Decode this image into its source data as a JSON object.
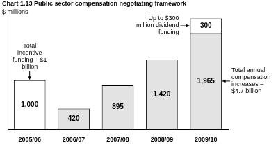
{
  "chart_data": {
    "type": "bar",
    "title": "Chart 1.13 Public sector compensation negotiating framework",
    "subtitle": "$ millions",
    "categories": [
      "2005/06",
      "2006/07",
      "2007/08",
      "2008/09",
      "2009/10"
    ],
    "series": [
      {
        "colors": [
          "#ffffff",
          "#e3e3e3",
          "#e3e3e3",
          "#e3e3e3",
          "#e3e3e3"
        ],
        "values": [
          1000,
          420,
          895,
          1420,
          1965
        ],
        "value_labels": [
          "1,000",
          "420",
          "895",
          "1,420",
          "1,965"
        ]
      },
      {
        "color": "#ffffff",
        "values": [
          null,
          null,
          null,
          null,
          300
        ]
      }
    ],
    "stacked": true,
    "data_labels": true,
    "ylim": [
      0,
      2300
    ],
    "tick_labels": "x",
    "grid": false,
    "annotations": [
      "Total incentive funding – $1 billion",
      "Up to $300 million dividend funding",
      "Total annual compensation increases – $4.7 billion"
    ]
  }
}
